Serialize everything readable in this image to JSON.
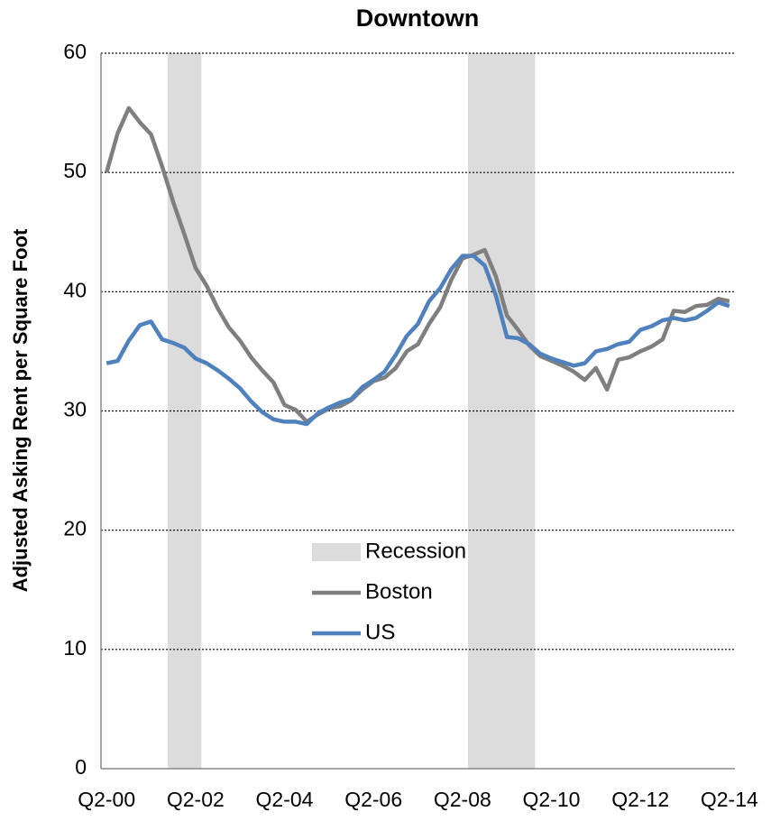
{
  "chart_data": {
    "type": "line",
    "title": "Downtown",
    "y_label": "Adjusted Asking Rent per Square Foot",
    "categories": [
      "Q2-00",
      null,
      null,
      null,
      null,
      null,
      null,
      null,
      "Q2-02",
      null,
      null,
      null,
      null,
      null,
      null,
      null,
      "Q2-04",
      null,
      null,
      null,
      null,
      null,
      null,
      null,
      "Q2-06",
      null,
      null,
      null,
      null,
      null,
      null,
      null,
      "Q2-08",
      null,
      null,
      null,
      null,
      null,
      null,
      null,
      "Q2-10",
      null,
      null,
      null,
      null,
      null,
      null,
      null,
      "Q2-12",
      null,
      null,
      null,
      null,
      null,
      null,
      null,
      "Q2-14"
    ],
    "series": [
      {
        "name": "Recession",
        "type": "bar",
        "color": "#dcdcdc",
        "values": [
          null,
          null,
          null,
          null,
          null,
          null,
          60,
          60,
          60,
          null,
          null,
          null,
          null,
          null,
          null,
          null,
          null,
          null,
          null,
          null,
          null,
          null,
          null,
          null,
          null,
          null,
          null,
          null,
          null,
          null,
          null,
          null,
          null,
          60,
          60,
          60,
          60,
          60,
          60,
          null,
          null,
          null,
          null,
          null,
          null,
          null,
          null,
          null,
          null,
          null,
          null,
          null,
          null,
          null,
          null,
          null,
          null
        ]
      },
      {
        "name": "Boston",
        "type": "line",
        "color": "#7f7f7f",
        "values": [
          50,
          53.3,
          55.4,
          54.2,
          53.2,
          50.5,
          47.5,
          44.8,
          42,
          40.5,
          38.6,
          37,
          35.9,
          34.5,
          33.4,
          32.4,
          30.5,
          30.1,
          29.1,
          29.7,
          30.2,
          30.4,
          30.9,
          31.8,
          32.5,
          32.8,
          33.6,
          35,
          35.6,
          37.3,
          38.7,
          41,
          42.8,
          43.1,
          43.5,
          41.3,
          38,
          36.8,
          35.5,
          34.6,
          34.2,
          33.8,
          33.3,
          32.6,
          33.6,
          31.8,
          34.3,
          34.5,
          35,
          35.4,
          36,
          38.4,
          38.3,
          38.8,
          38.9,
          39.4,
          39.2
        ]
      },
      {
        "name": "US",
        "type": "line",
        "color": "#4f81bd",
        "values": [
          34,
          34.2,
          35.9,
          37.2,
          37.5,
          36,
          35.7,
          35.3,
          34.4,
          34,
          33.4,
          32.7,
          31.9,
          30.8,
          29.9,
          29.3,
          29.1,
          29.1,
          28.9,
          29.8,
          30.3,
          30.7,
          31,
          32,
          32.6,
          33.3,
          34.7,
          36.3,
          37.3,
          39.2,
          40.3,
          41.9,
          43,
          43,
          42.2,
          39.7,
          36.2,
          36.1,
          35.6,
          34.8,
          34.4,
          34.1,
          33.8,
          34,
          35,
          35.2,
          35.6,
          35.8,
          36.8,
          37.1,
          37.6,
          37.8,
          37.6,
          37.8,
          38.4,
          39.1,
          38.8
        ]
      }
    ],
    "ylim": [
      0,
      60
    ],
    "yticks": [
      0,
      10,
      20,
      30,
      40,
      50,
      60
    ],
    "grid": true
  }
}
